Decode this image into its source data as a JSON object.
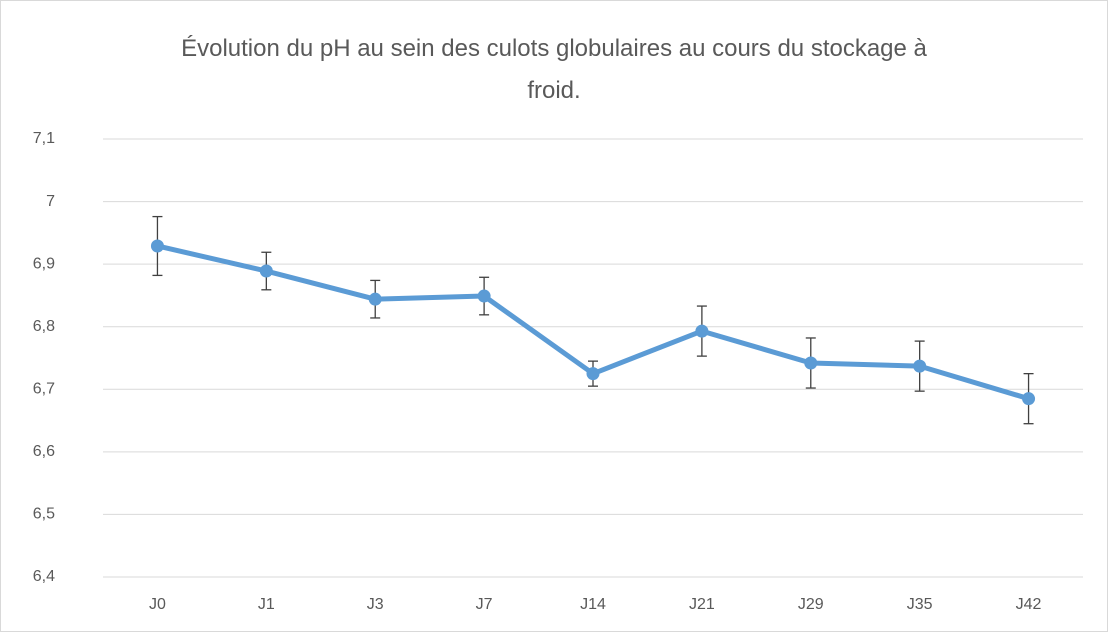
{
  "chart_data": {
    "type": "line",
    "title": "Évolution du pH au sein des culots globulaires au cours du stockage à froid.",
    "categories": [
      "J0",
      "J1",
      "J3",
      "J7",
      "J14",
      "J21",
      "J29",
      "J35",
      "J42"
    ],
    "values": [
      6.929,
      6.889,
      6.844,
      6.849,
      6.725,
      6.793,
      6.742,
      6.737,
      6.685
    ],
    "errors": [
      0.047,
      0.03,
      0.03,
      0.03,
      0.02,
      0.04,
      0.04,
      0.04,
      0.04
    ],
    "color": "#5b9bd5",
    "ylim": [
      6.4,
      7.1
    ],
    "yticks": [
      {
        "value": 6.4,
        "label": "6,4"
      },
      {
        "value": 6.5,
        "label": "6,5"
      },
      {
        "value": 6.6,
        "label": "6,6"
      },
      {
        "value": 6.7,
        "label": "6,7"
      },
      {
        "value": 6.8,
        "label": "6,8"
      },
      {
        "value": 6.9,
        "label": "6,9"
      },
      7,
      {
        "value": 7.1,
        "label": "7,1"
      }
    ],
    "grid": true
  }
}
